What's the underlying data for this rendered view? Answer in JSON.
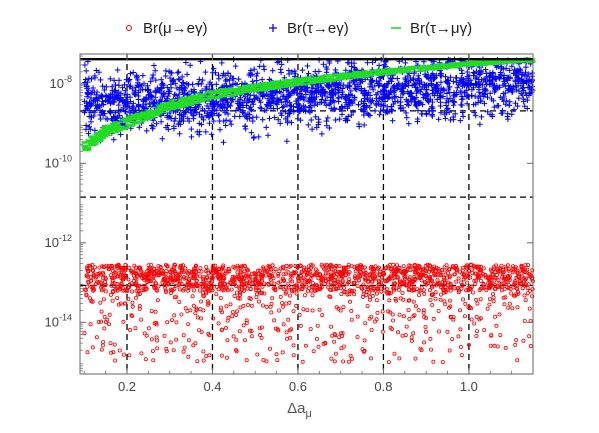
{
  "chart_data": {
    "type": "scatter",
    "title": "",
    "xlabel_main": "Δa",
    "xlabel_sub": "μ",
    "ylabel": "",
    "xlim": [
      0.09,
      1.15
    ],
    "ylim_log10": [
      -15.3,
      -7.25
    ],
    "yscale": "log",
    "x_ticks": [
      0.2,
      0.4,
      0.6,
      0.8,
      1.0
    ],
    "x_tick_labels": [
      "0.2",
      "0.4",
      "0.6",
      "0.8",
      "1.0"
    ],
    "y_ticks_log10": [
      -8,
      -10,
      -12,
      -14
    ],
    "y_tick_labels": [
      {
        "base": "10",
        "exp": "-8"
      },
      {
        "base": "10",
        "exp": "-10"
      },
      {
        "base": "10",
        "exp": "-12"
      },
      {
        "base": "10",
        "exp": "-14"
      }
    ],
    "legend_position": "top",
    "reference_lines": {
      "horizontal_log10": [
        -7.38,
        -8.68,
        -10.85,
        -13.07
      ],
      "vertical_x": [
        0.2,
        0.4,
        0.6,
        0.8,
        1.0
      ],
      "solid_top_log10": -7.38
    },
    "series": [
      {
        "name": "Br(μ→eγ)",
        "marker": "circle",
        "color": "#ff0000",
        "x_range": [
          0.1,
          1.15
        ],
        "log10_range": [
          -15.0,
          -12.55
        ],
        "dense_band_log10": [
          -13.2,
          -12.55
        ],
        "approx_points": 1800
      },
      {
        "name": "Br(τ→eγ)",
        "marker": "plus",
        "color": "#0000ff",
        "x_range": [
          0.1,
          1.15
        ],
        "log10_range": [
          -9.5,
          -7.38
        ],
        "approx_points": 2000
      },
      {
        "name": "Br(τ→μγ)",
        "marker": "dash",
        "color": "#22dd22",
        "x": [
          0.1,
          0.15,
          0.2,
          0.3,
          0.4,
          0.5,
          0.6,
          0.7,
          0.8,
          0.9,
          1.0,
          1.1,
          1.15
        ],
        "log10_y": [
          -9.6,
          -9.2,
          -8.98,
          -8.55,
          -8.28,
          -8.1,
          -7.95,
          -7.82,
          -7.7,
          -7.6,
          -7.5,
          -7.43,
          -7.4
        ]
      }
    ]
  },
  "colors": {
    "frame": "#666666",
    "grid": "#000000",
    "tick_label": "#444444"
  }
}
